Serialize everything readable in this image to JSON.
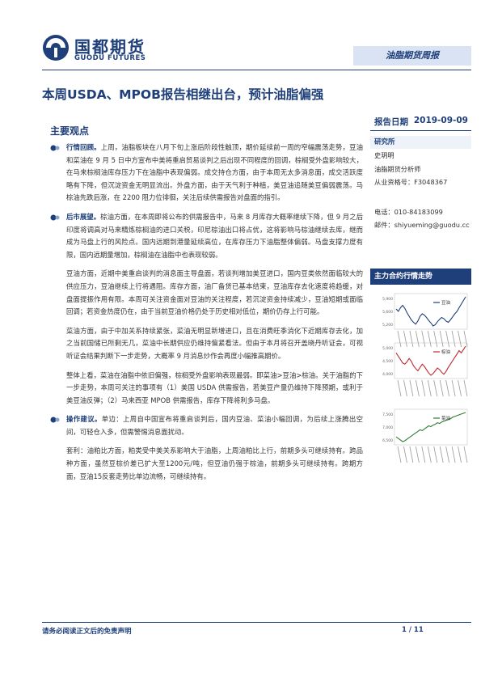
{
  "brand": {
    "name_cn": "国都期货",
    "name_en": "GUODU FUTURES",
    "color": "#1f3f7a"
  },
  "header": {
    "report_tag": "油脂期货周报"
  },
  "title": "本周USDA、MPOB报告相继出台，预计油脂偏强",
  "report_date": {
    "label": "报告日期",
    "value": "2019-09-09"
  },
  "section_title": "主要观点",
  "paragraphs": [
    {
      "lead": "行情回顾。",
      "text": "上周，油脂板块在八月下旬上涨后阶段性触顶，期价延续前一周的窄幅震荡走势，豆油和菜油在 9 月 5 日中方宣布中美将重启贸易谈判之后出现不同程度的回调，棕榈受外盘影响较大，在马来棕榈油库存压力下在油脂中表现偏弱。成交持仓方面，由于本周无太多消息面，成交活跃度略有下降，但沉淀资金无明显流出。外盘方面，由于天气利于种植，美豆油追随美豆偏弱震荡。马棕油先跌后涨，在 2200 阻力位徘徊，关注后续供需报告对盘面的指引。"
    },
    {
      "lead": "后市展望。",
      "text": "棕油方面，在本周即将公布的供需报告中，马来 8 月库存大概率继续下降，但 9 月之后印度将调高对马来精炼棕榈油的进口关税，印尼棕油出口将占优，这将影响马棕油继续去库，继而成为马盘上行的风险点。国内远期到港量延续高位，在库存压力下油脂整体偏弱。马盘支撑力度有限，国内远期量增加，棕榈油在油脂中也表现较弱。"
    },
    {
      "lead": "",
      "text": "豆油方面，近期中美重启谈判的消息面主导盘面，若谈判增加美豆进口，国内豆类依然面临较大的供应压力，豆油继续上行将遇阻。库存方面，油厂备货已基本结束，豆油库存去化速度将趋缓，对盘面提振作用有限。本周可关注资金面对豆油的关注程度，若沉淀资金持续减少，豆油短期或面临回调；若资金热度仍在，由于当前豆油价格仍处于历史相对低位，期价仍存上行可能。"
    },
    {
      "lead": "",
      "text": "菜油方面，由于中加关系持续紧张，菜油无明显新增进口，且在消费旺季消化下近期库存去化，加之当前国储已所剩无几，菜油中长期供应仍维持偏紧看法。但由于本月将召开盖晓丹听证会，可视听证会结果判断下一步走势，大概率 9 月消息炒作会再度小幅推高期价。"
    },
    {
      "lead": "",
      "text": "整体上看，菜油在油脂中依旧偏强，棕榈受外盘影响表现最弱。即菜油>豆油>棕油。关于油脂的下一步走势，本周可关注的事项有（1）美国 USDA 供需报告，若美豆产量仍维持下降预期，或利于美豆油反弹；（2）马来西亚 MPOB 供需报告，库存下降将利多马盘。"
    },
    {
      "lead": "操作建议。",
      "text": "单边：上周自中国宣布将重启谈判后，国内豆油、菜油小幅回调，为后续上涨腾出空间，可轻仓入多，但需警惕消息面扰动。"
    },
    {
      "lead": "",
      "text": "套利：油粕比方面，粕类受中美关系影响大于油脂，上周油粕比上行，前期多头可继续持有。跨品种方面，虽然豆棕价差已扩大至1200元/吨，但豆油仍强于棕油，前期多头可继续持有。跨期方面，豆油15反套走势比单边流畅，可继续持有。"
    }
  ],
  "analyst": {
    "heading": "研究所",
    "name": "史玥明",
    "title": "油脂期货分析师",
    "cert": "从业资格号：F3048367",
    "phone": "电话：010-84183099",
    "email": "邮件：shiyueming@guodu.cc"
  },
  "trend_heading": "主力合约行情走势",
  "charts": [
    {
      "legend": "豆油",
      "color": "#1f3f7a",
      "y_ticks": [
        "5,900",
        "5,600",
        "5,200"
      ],
      "values": [
        5680,
        5640,
        5700,
        5740,
        5690,
        5620,
        5560,
        5500,
        5460,
        5430,
        5480,
        5560,
        5600,
        5580,
        5540,
        5490,
        5450,
        5400,
        5420,
        5470,
        5510,
        5540,
        5520,
        5480,
        5460,
        5500,
        5550,
        5600,
        5640,
        5700,
        5760,
        5820,
        5880
      ]
    },
    {
      "legend": "棕油",
      "color": "#c0282d",
      "y_ticks": [
        "5,000",
        "4,500",
        "4,000"
      ],
      "values": [
        4580,
        4520,
        4460,
        4400,
        4380,
        4420,
        4480,
        4430,
        4350,
        4300,
        4260,
        4320,
        4380,
        4340,
        4280,
        4220,
        4180,
        4210,
        4260,
        4310,
        4280,
        4230,
        4200,
        4250,
        4320,
        4380,
        4440,
        4500,
        4560,
        4620,
        4580,
        4640,
        4700
      ]
    },
    {
      "legend": "菜油",
      "color": "#2e7d32",
      "y_ticks": [
        "7,500",
        "7,000",
        "6,500"
      ],
      "values": [
        6900,
        6860,
        6820,
        6780,
        6800,
        6840,
        6880,
        6920,
        6960,
        7000,
        7040,
        7080,
        7060,
        7100,
        7140,
        7180,
        7160,
        7200,
        7220,
        7260,
        7240,
        7280,
        7300,
        7320,
        7340,
        7360,
        7400,
        7420,
        7440,
        7460,
        7480,
        7500,
        7520
      ]
    }
  ],
  "footer": {
    "disclaimer": "请务必阅读正文后的免责声明",
    "page": "1 / 11"
  }
}
